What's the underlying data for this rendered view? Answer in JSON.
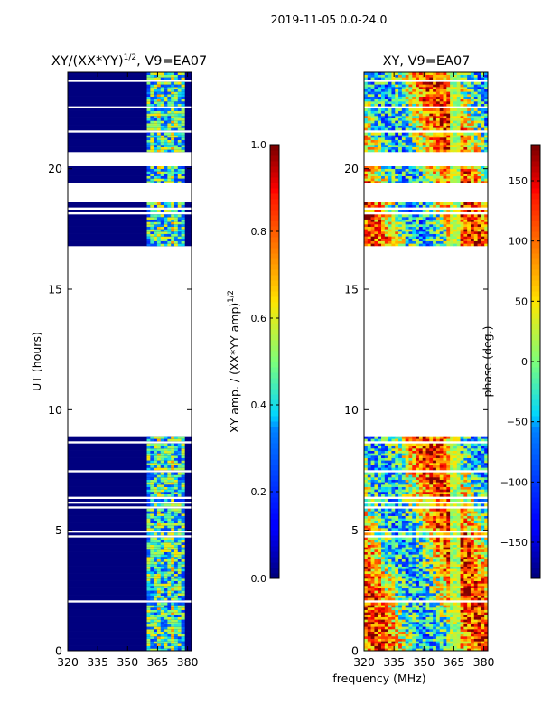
{
  "figure_title": "2019-11-05 0.0-24.0",
  "chart_data": [
    {
      "type": "heatmap",
      "title": "XY/(XX*YY)^1/2, V9=EA07",
      "title_main": "XY/(XX*YY)",
      "title_exp": "1/2",
      "title_tail": ", V9=EA07",
      "xlabel": "",
      "ylabel": "UT (hours)",
      "xlim": [
        320,
        382
      ],
      "ylim": [
        0,
        24
      ],
      "xticks": [
        320,
        335,
        350,
        365,
        380
      ],
      "yticks": [
        0,
        5,
        10,
        15,
        20
      ],
      "data_blocks_ut": [
        [
          0,
          8.9
        ],
        [
          16.8,
          18.6
        ],
        [
          19.4,
          20.1
        ],
        [
          20.6,
          24
        ]
      ],
      "gap_ut": [
        [
          8.9,
          16.8
        ],
        [
          18.6,
          19.4
        ],
        [
          20.1,
          20.6
        ]
      ],
      "active_band_mhz": [
        359,
        377
      ],
      "colorbar": {
        "label": "XY amp. / (XX*YY amp)^1/2",
        "label_main": "XY amp. / (XX*YY amp)",
        "label_exp": "1/2",
        "range": [
          0,
          1
        ],
        "ticks": [
          "0.0",
          "0.2",
          "0.4",
          "0.6",
          "0.8",
          "1.0"
        ]
      }
    },
    {
      "type": "heatmap",
      "title": "XY, V9=EA07",
      "xlabel": "frequency (MHz)",
      "ylabel": "",
      "xlim": [
        320,
        382
      ],
      "ylim": [
        0,
        24
      ],
      "xticks": [
        320,
        335,
        350,
        365,
        380
      ],
      "yticks": [
        0,
        5,
        10,
        15,
        20
      ],
      "colorbar": {
        "label": "phase (deg.)",
        "range": [
          -180,
          180
        ],
        "ticks": [
          "150",
          "100",
          "50",
          "0",
          "−50",
          "−100",
          "−150"
        ]
      }
    }
  ],
  "colors": {
    "low": "#00007f",
    "high": "#7f0000",
    "background": "#ffffff"
  }
}
